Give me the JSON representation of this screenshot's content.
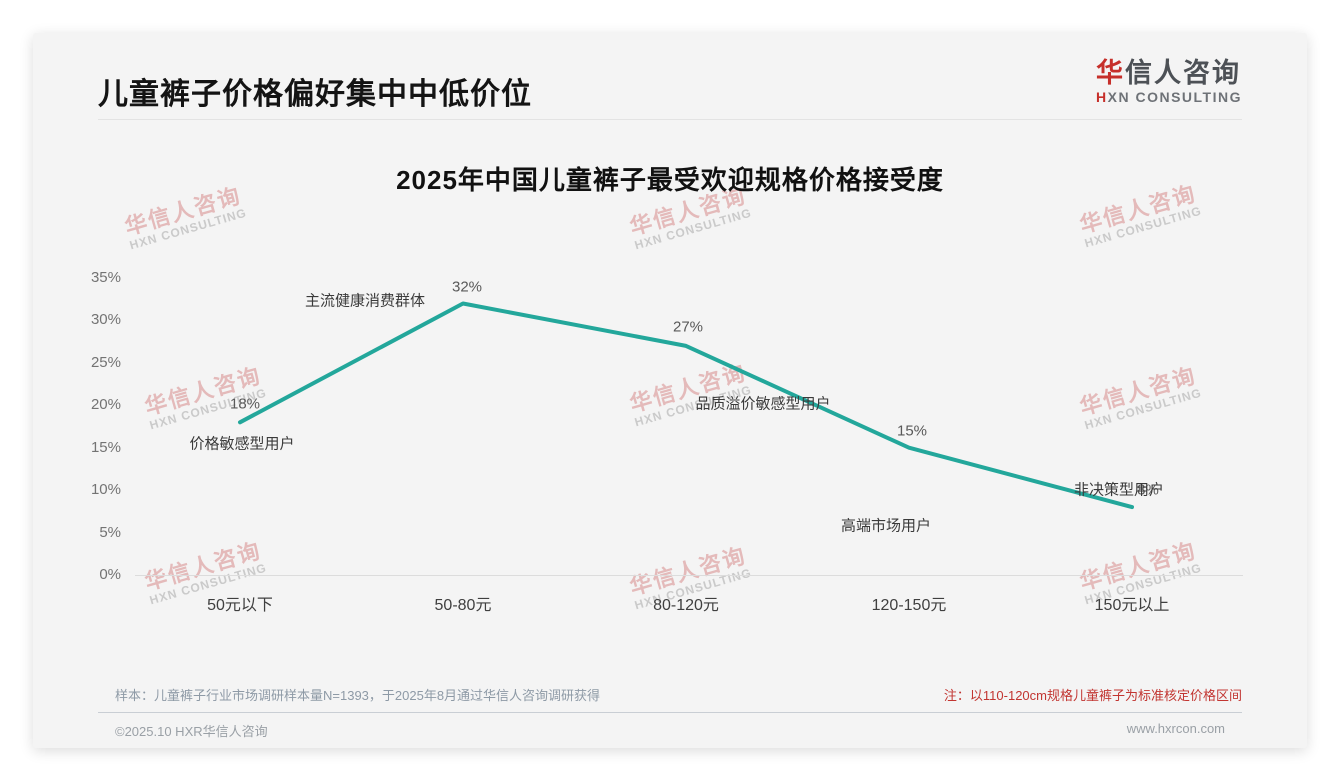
{
  "page": {
    "title": "儿童裤子价格偏好集中中低价位",
    "logo": {
      "zh_first": "华",
      "zh_rest": "信人咨询",
      "en_first": "H",
      "en_rest": "XN CONSULTING"
    },
    "watermark": {
      "zh": "华信人咨询",
      "en": "HXN CONSULTING"
    }
  },
  "chart_data": {
    "type": "line",
    "title": "2025年中国儿童裤子最受欢迎规格价格接受度",
    "categories": [
      "50元以下",
      "50-80元",
      "80-120元",
      "120-150元",
      "150元以上"
    ],
    "values": [
      18,
      32,
      27,
      15,
      8
    ],
    "value_labels": [
      "18%",
      "32%",
      "27%",
      "15%",
      "8%"
    ],
    "point_annotations": [
      "价格敏感型用户",
      "主流健康消费群体",
      "品质溢价敏感型用户",
      "高端市场用户",
      "非决策型用户"
    ],
    "yticks": [
      "35%",
      "30%",
      "25%",
      "20%",
      "15%",
      "10%",
      "5%",
      "0%"
    ],
    "ylim": [
      0,
      35
    ],
    "grid": false,
    "legend": false,
    "line_color": "#23a79b"
  },
  "footnotes": {
    "sample_note": "样本：儿童裤子行业市场调研样本量N=1393，于2025年8月通过华信人咨询调研获得",
    "red_note": "注：以110-120cm规格儿童裤子为标准核定价格区间"
  },
  "footer": {
    "copyright": "©2025.10 HXR华信人咨询",
    "website": "www.hxrcon.com"
  }
}
